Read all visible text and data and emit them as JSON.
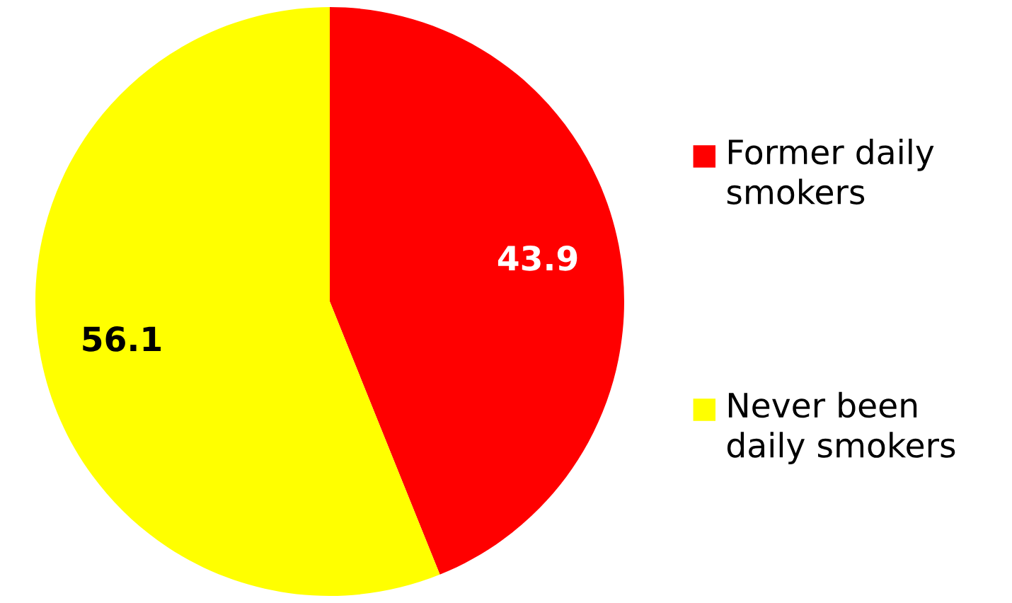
{
  "chart_data": {
    "type": "pie",
    "categories": [
      "Former daily smokers",
      "Never been daily smokers"
    ],
    "values": [
      43.9,
      56.1
    ],
    "colors": [
      "#ff0000",
      "#ffff00"
    ],
    "data_labels": true,
    "legend": "right"
  }
}
